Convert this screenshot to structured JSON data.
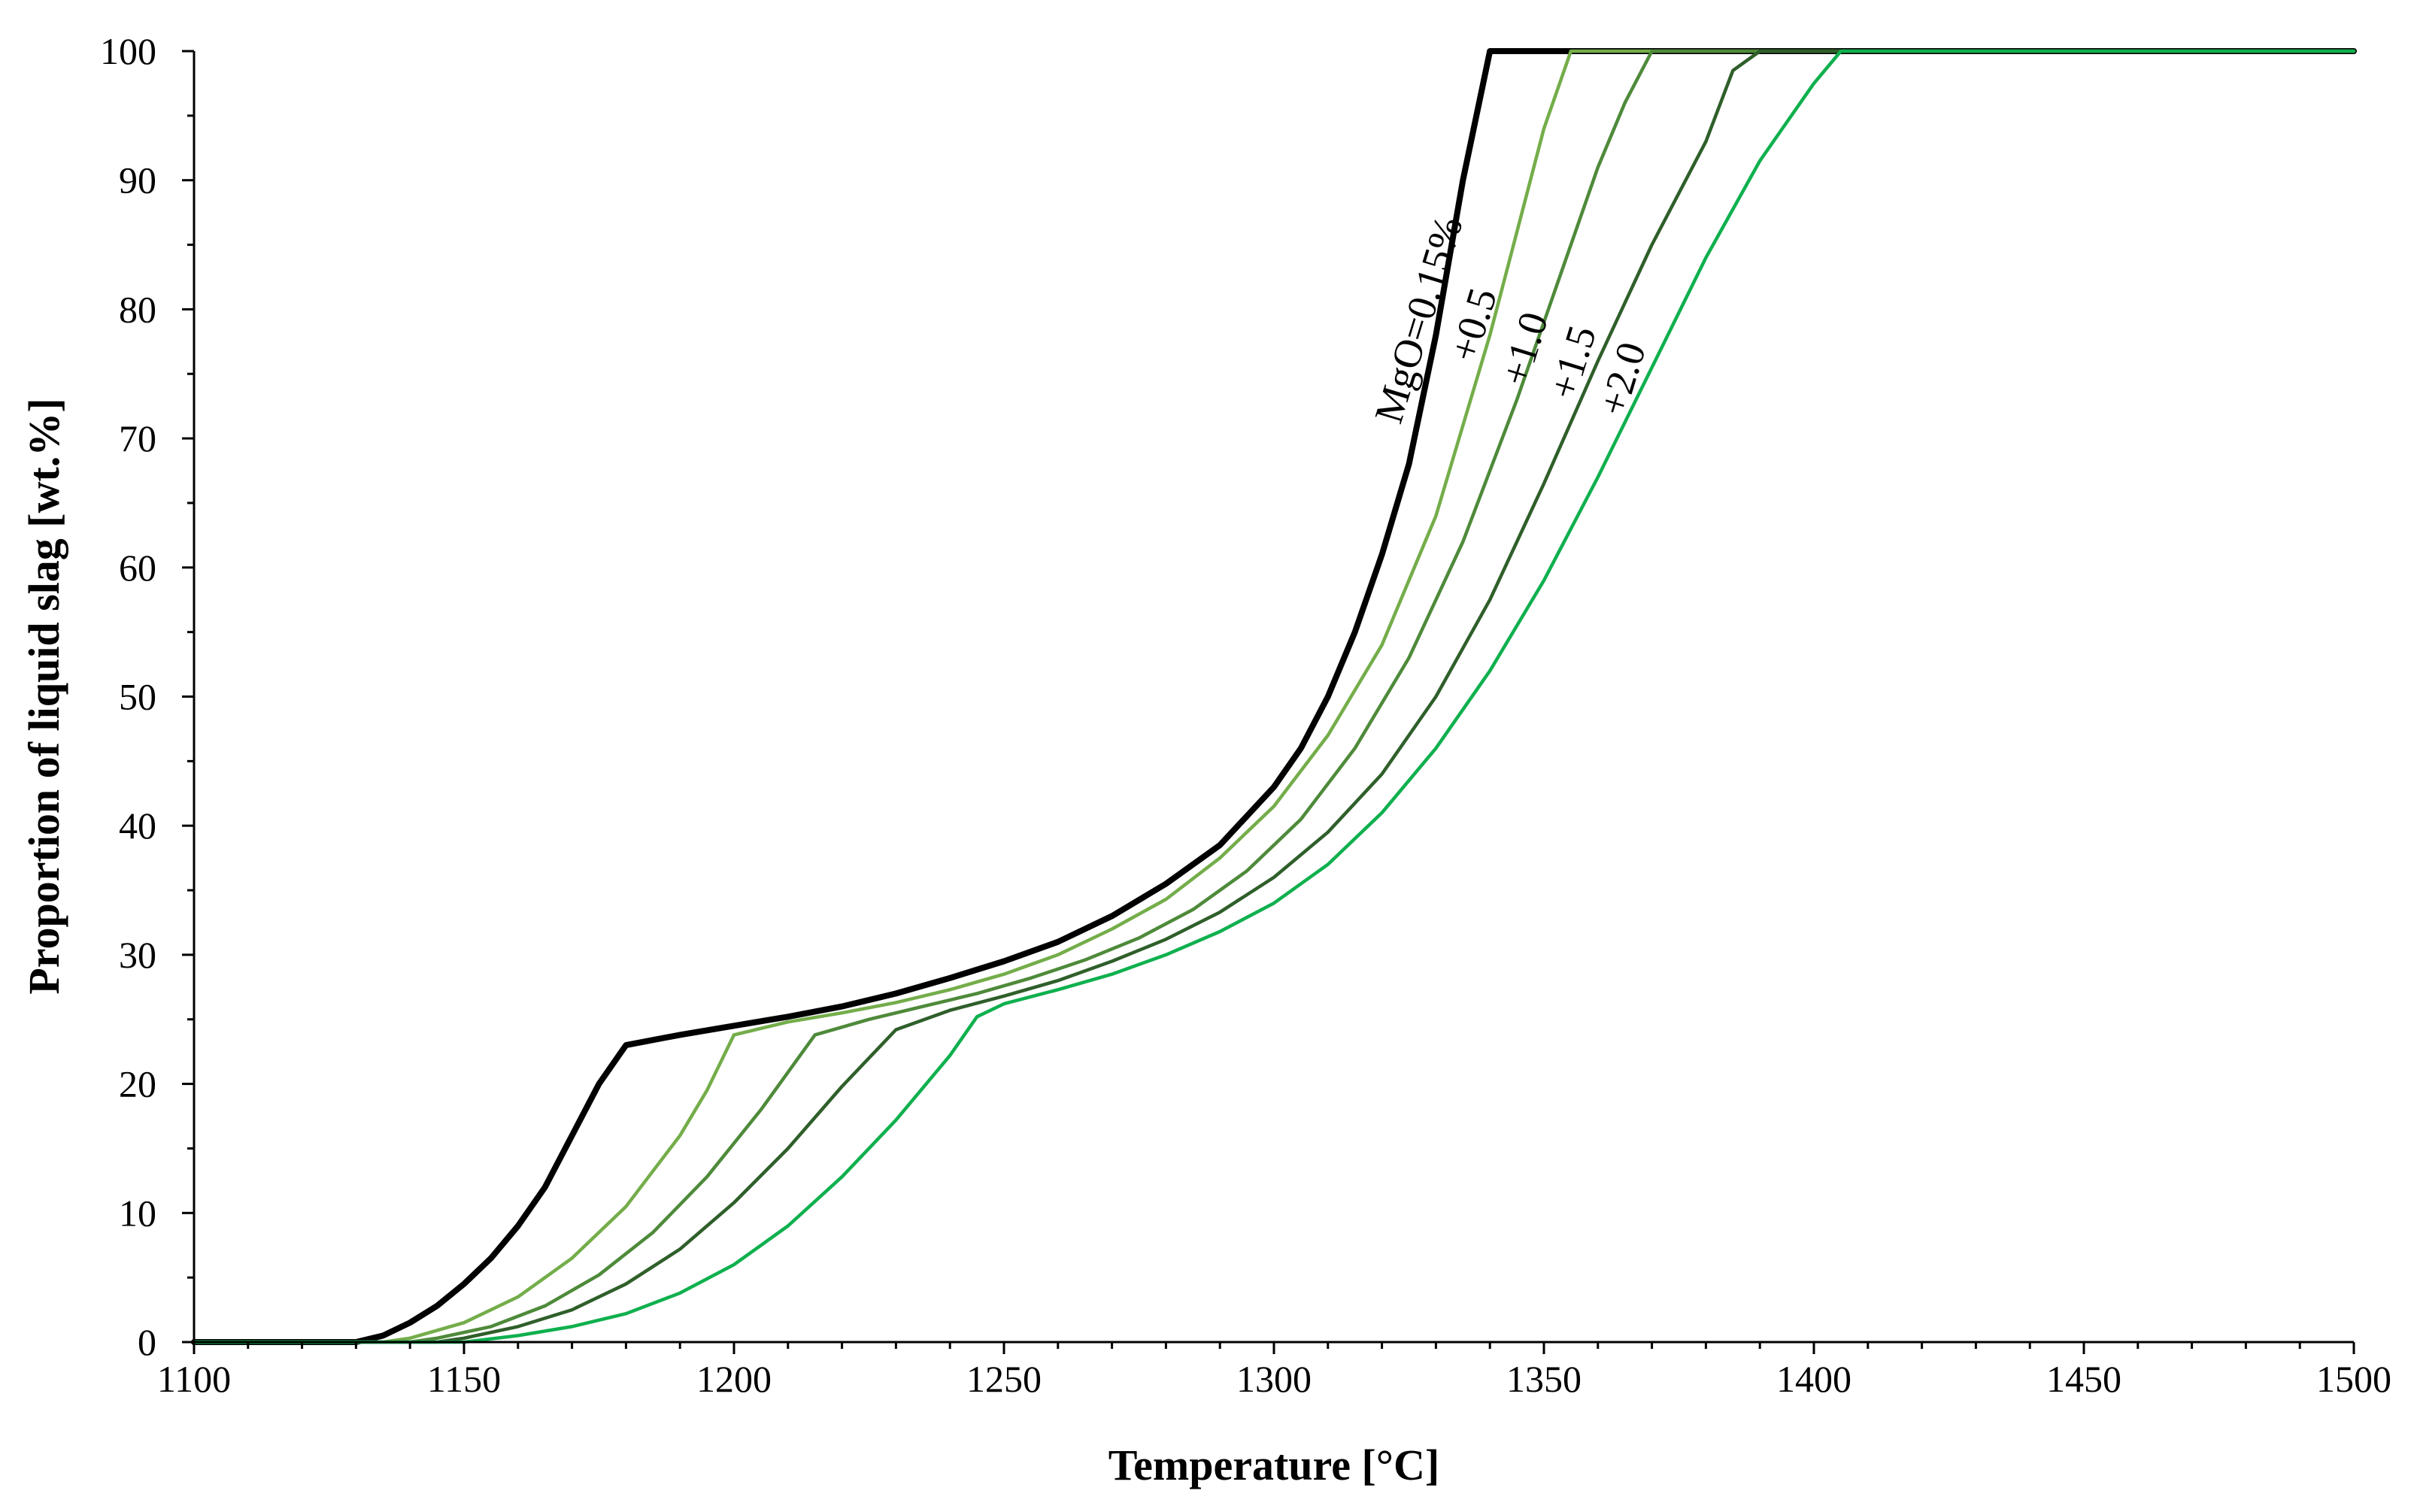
{
  "chart_data": {
    "type": "line",
    "title": "",
    "xlabel": "Temperature [°C]",
    "ylabel": "Proportion of liquid slag [wt.%]",
    "xlim": [
      1100,
      1500
    ],
    "ylim": [
      0,
      100
    ],
    "x_ticks": [
      1100,
      1150,
      1200,
      1250,
      1300,
      1350,
      1400,
      1450,
      1500
    ],
    "y_ticks": [
      0,
      10,
      20,
      30,
      40,
      50,
      60,
      70,
      80,
      90,
      100
    ],
    "x_minor_step": 10,
    "y_minor_step": 5,
    "grid": false,
    "legend": "none",
    "series": [
      {
        "name": "MgO=0.15%",
        "color": "#000000",
        "points": [
          [
            1100,
            0
          ],
          [
            1130,
            0
          ],
          [
            1135,
            0.5
          ],
          [
            1140,
            1.5
          ],
          [
            1145,
            2.8
          ],
          [
            1150,
            4.5
          ],
          [
            1155,
            6.5
          ],
          [
            1160,
            9
          ],
          [
            1165,
            12
          ],
          [
            1170,
            16
          ],
          [
            1175,
            20
          ],
          [
            1180,
            23
          ],
          [
            1190,
            23.8
          ],
          [
            1200,
            24.5
          ],
          [
            1210,
            25.2
          ],
          [
            1220,
            26
          ],
          [
            1230,
            27
          ],
          [
            1240,
            28.2
          ],
          [
            1250,
            29.5
          ],
          [
            1260,
            31
          ],
          [
            1270,
            33
          ],
          [
            1280,
            35.5
          ],
          [
            1290,
            38.5
          ],
          [
            1300,
            43
          ],
          [
            1305,
            46
          ],
          [
            1310,
            50
          ],
          [
            1315,
            55
          ],
          [
            1320,
            61
          ],
          [
            1325,
            68
          ],
          [
            1330,
            78
          ],
          [
            1335,
            90
          ],
          [
            1340,
            100
          ],
          [
            1500,
            100
          ]
        ]
      },
      {
        "name": "+0.5",
        "color": "#74ad4a",
        "points": [
          [
            1100,
            0
          ],
          [
            1135,
            0
          ],
          [
            1140,
            0.3
          ],
          [
            1150,
            1.5
          ],
          [
            1160,
            3.5
          ],
          [
            1170,
            6.5
          ],
          [
            1180,
            10.5
          ],
          [
            1190,
            16
          ],
          [
            1195,
            19.5
          ],
          [
            1200,
            23.8
          ],
          [
            1210,
            24.8
          ],
          [
            1220,
            25.5
          ],
          [
            1230,
            26.3
          ],
          [
            1240,
            27.3
          ],
          [
            1250,
            28.5
          ],
          [
            1260,
            30
          ],
          [
            1270,
            32
          ],
          [
            1280,
            34.3
          ],
          [
            1290,
            37.5
          ],
          [
            1300,
            41.5
          ],
          [
            1310,
            47
          ],
          [
            1320,
            54
          ],
          [
            1330,
            64
          ],
          [
            1340,
            78
          ],
          [
            1345,
            86
          ],
          [
            1350,
            94
          ],
          [
            1355,
            100
          ],
          [
            1500,
            100
          ]
        ]
      },
      {
        "name": "+1.0",
        "color": "#4e8a3a",
        "points": [
          [
            1100,
            0
          ],
          [
            1140,
            0
          ],
          [
            1145,
            0.3
          ],
          [
            1155,
            1.2
          ],
          [
            1165,
            2.8
          ],
          [
            1175,
            5.2
          ],
          [
            1185,
            8.5
          ],
          [
            1195,
            12.8
          ],
          [
            1205,
            18
          ],
          [
            1215,
            23.8
          ],
          [
            1225,
            25
          ],
          [
            1235,
            26
          ],
          [
            1245,
            27
          ],
          [
            1255,
            28.2
          ],
          [
            1265,
            29.6
          ],
          [
            1275,
            31.3
          ],
          [
            1285,
            33.5
          ],
          [
            1295,
            36.5
          ],
          [
            1305,
            40.5
          ],
          [
            1315,
            46
          ],
          [
            1325,
            53
          ],
          [
            1335,
            62
          ],
          [
            1345,
            73
          ],
          [
            1355,
            85
          ],
          [
            1360,
            91
          ],
          [
            1365,
            96
          ],
          [
            1370,
            100
          ],
          [
            1500,
            100
          ]
        ]
      },
      {
        "name": "+1.5",
        "color": "#2f5f2a",
        "points": [
          [
            1100,
            0
          ],
          [
            1145,
            0
          ],
          [
            1150,
            0.3
          ],
          [
            1160,
            1.2
          ],
          [
            1170,
            2.5
          ],
          [
            1180,
            4.5
          ],
          [
            1190,
            7.2
          ],
          [
            1200,
            10.8
          ],
          [
            1210,
            15
          ],
          [
            1220,
            19.8
          ],
          [
            1230,
            24.2
          ],
          [
            1240,
            25.7
          ],
          [
            1250,
            26.8
          ],
          [
            1260,
            28
          ],
          [
            1270,
            29.5
          ],
          [
            1280,
            31.2
          ],
          [
            1290,
            33.3
          ],
          [
            1300,
            36
          ],
          [
            1310,
            39.5
          ],
          [
            1320,
            44
          ],
          [
            1330,
            50
          ],
          [
            1340,
            57.5
          ],
          [
            1350,
            66.5
          ],
          [
            1360,
            76
          ],
          [
            1370,
            85
          ],
          [
            1380,
            93
          ],
          [
            1385,
            98.5
          ],
          [
            1390,
            100
          ],
          [
            1500,
            100
          ]
        ]
      },
      {
        "name": "+2.0",
        "color": "#0fb04e",
        "points": [
          [
            1100,
            0
          ],
          [
            1150,
            0
          ],
          [
            1160,
            0.5
          ],
          [
            1170,
            1.2
          ],
          [
            1180,
            2.2
          ],
          [
            1190,
            3.8
          ],
          [
            1200,
            6
          ],
          [
            1210,
            9
          ],
          [
            1220,
            12.8
          ],
          [
            1230,
            17.2
          ],
          [
            1240,
            22.2
          ],
          [
            1245,
            25.2
          ],
          [
            1250,
            26.2
          ],
          [
            1260,
            27.3
          ],
          [
            1270,
            28.5
          ],
          [
            1280,
            30
          ],
          [
            1290,
            31.8
          ],
          [
            1300,
            34
          ],
          [
            1310,
            37
          ],
          [
            1320,
            41
          ],
          [
            1330,
            46
          ],
          [
            1340,
            52
          ],
          [
            1350,
            59
          ],
          [
            1360,
            67
          ],
          [
            1370,
            75.5
          ],
          [
            1380,
            84
          ],
          [
            1390,
            91.5
          ],
          [
            1400,
            97.5
          ],
          [
            1405,
            100
          ],
          [
            1500,
            100
          ]
        ]
      }
    ]
  }
}
